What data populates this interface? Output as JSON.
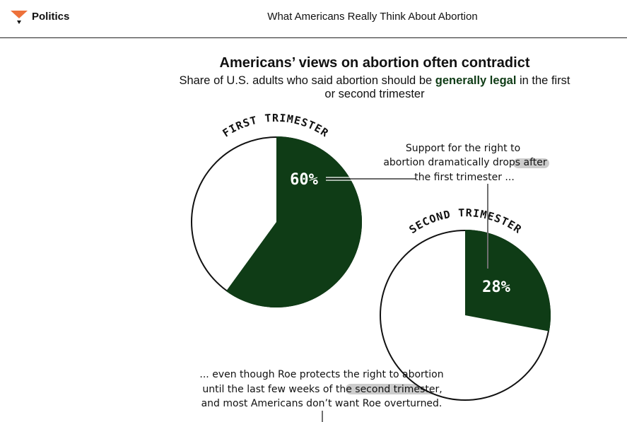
{
  "header": {
    "section": "Politics",
    "article_title": "What Americans Really Think About Abortion",
    "logo_icon": "fivethirtyeight-logo-icon",
    "logo_color": "#ed713a"
  },
  "chart": {
    "title": "Americans’ views on abortion often contradict",
    "subtitle_before": "Share of U.S. adults who said abortion should be ",
    "subtitle_highlight": "generally legal",
    "subtitle_after": " in the first or second trimester",
    "annotation_top": [
      "Support for the right to",
      "abortion dramatically drops after",
      "the first trimester ..."
    ],
    "annotation_bottom": [
      "... even though Roe protects the right to abortion",
      "until the last few weeks of the second trimester,",
      "and most Americans don’t want Roe overturned."
    ]
  },
  "chart_data": {
    "type": "pie",
    "colors": {
      "legal": "#0f3c16",
      "remainder": "#ffffff",
      "highlight": "#cccccc"
    },
    "charts": [
      {
        "label": "FIRST TRIMESTER",
        "value": 60,
        "value_label": "60%"
      },
      {
        "label": "SECOND TRIMESTER",
        "value": 28,
        "value_label": "28%"
      }
    ]
  }
}
